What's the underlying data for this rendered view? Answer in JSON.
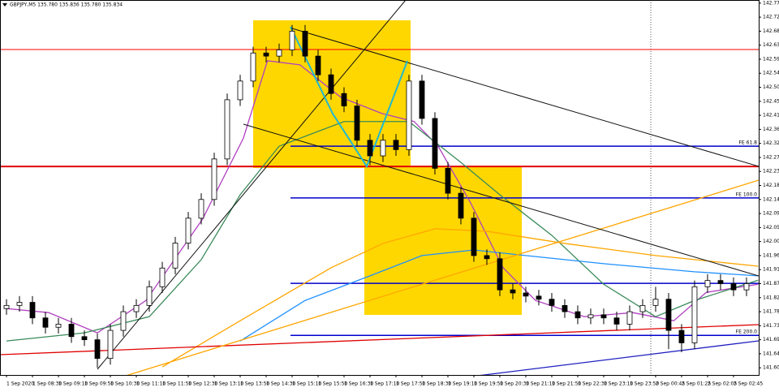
{
  "chart_data": {
    "type": "candlestick",
    "title": "GBPJPY,M5 135.780 135.836 135.780 135.834",
    "xlim": [
      -0.5,
      57.94
    ],
    "ylim": [
      141.577,
      142.78
    ],
    "yticks": [
      142.77,
      142.725,
      142.68,
      142.635,
      {
        "value": 142.59,
        "label": "142.590"
      },
      142.545,
      {
        "value": 142.5,
        "label": "142.500"
      },
      142.455,
      {
        "value": 142.41,
        "label": "142.410"
      },
      142.365,
      {
        "value": 142.32,
        "label": "142.320"
      },
      142.275,
      {
        "value": 142.23,
        "label": "142.230"
      },
      142.185,
      {
        "value": 142.14,
        "label": "142.140"
      },
      142.095,
      {
        "value": 142.05,
        "label": "142.050"
      },
      142.005,
      {
        "value": 141.96,
        "label": "141.960"
      },
      141.915,
      {
        "value": 141.87,
        "label": "141.870"
      },
      141.825,
      {
        "value": 141.78,
        "label": "141.780"
      },
      141.735,
      {
        "value": 141.69,
        "label": "141.690"
      },
      141.645,
      {
        "value": 141.6,
        "label": "141.600"
      }
    ],
    "xticks": [
      {
        "value": 0,
        "label": "1 Sep 2020"
      },
      {
        "value": 2,
        "label": "1 Sep 08:30"
      },
      {
        "value": 4,
        "label": "1 Sep 09:10"
      },
      {
        "value": 6,
        "label": "1 Sep 09:50"
      },
      {
        "value": 8,
        "label": "1 Sep 10:30"
      },
      {
        "value": 10,
        "label": "1 Sep 11:10"
      },
      {
        "value": 12,
        "label": "1 Sep 11:50"
      },
      {
        "value": 14,
        "label": "1 Sep 12:30"
      },
      {
        "value": 16,
        "label": "1 Sep 13:10"
      },
      {
        "value": 18,
        "label": "1 Sep 13:50"
      },
      {
        "value": 20,
        "label": "1 Sep 14:30"
      },
      {
        "value": 22,
        "label": "1 Sep 15:10"
      },
      {
        "value": 24,
        "label": "1 Sep 15:50"
      },
      {
        "value": 26,
        "label": "1 Sep 16:30"
      },
      {
        "value": 28,
        "label": "1 Sep 17:10"
      },
      {
        "value": 30,
        "label": "1 Sep 17:50"
      },
      {
        "value": 32,
        "label": "1 Sep 18:30"
      },
      {
        "value": 34,
        "label": "1 Sep 19:10"
      },
      {
        "value": 36,
        "label": "1 Sep 19:50"
      },
      {
        "value": 38,
        "label": "1 Sep 20:30"
      },
      {
        "value": 40,
        "label": "1 Sep 21:10"
      },
      {
        "value": 42,
        "label": "1 Sep 21:50"
      },
      {
        "value": 44,
        "label": "1 Sep 22:30"
      },
      {
        "value": 46,
        "label": "1 Sep 23:10"
      },
      {
        "value": 48,
        "label": "1 Sep 23:50"
      },
      {
        "value": 50,
        "label": "2 Sep 00:45"
      },
      {
        "value": 52,
        "label": "2 Sep 01:25"
      },
      {
        "value": 54,
        "label": "2 Sep 02:05"
      },
      {
        "value": 56,
        "label": "2 Sep 02:45"
      }
    ],
    "open": [
      141.79,
      141.8,
      141.81,
      141.76,
      141.73,
      141.74,
      141.7,
      141.69,
      141.63,
      141.72,
      141.78,
      141.8,
      141.86,
      141.92,
      142.0,
      142.08,
      142.14,
      142.27,
      142.46,
      142.52,
      142.61,
      142.6,
      142.62,
      142.68,
      142.6,
      142.54,
      142.48,
      142.44,
      142.33,
      142.28,
      142.33,
      142.3,
      142.52,
      142.4,
      142.24,
      142.16,
      142.08,
      141.96,
      141.95,
      141.85,
      141.84,
      141.83,
      141.82,
      141.8,
      141.78,
      141.76,
      141.77,
      141.76,
      141.74,
      141.78,
      141.8,
      141.82,
      141.72,
      141.68,
      141.86,
      141.88,
      141.87,
      141.85
    ],
    "high": [
      141.82,
      141.83,
      141.83,
      141.78,
      141.76,
      141.76,
      141.72,
      141.71,
      141.74,
      141.8,
      141.82,
      141.88,
      141.94,
      142.02,
      142.1,
      142.16,
      142.29,
      142.48,
      142.54,
      142.63,
      142.63,
      142.64,
      142.7,
      142.7,
      142.62,
      142.56,
      142.5,
      142.46,
      142.35,
      142.35,
      142.35,
      142.54,
      142.54,
      142.42,
      142.26,
      142.18,
      142.1,
      141.98,
      141.97,
      141.87,
      141.86,
      141.85,
      141.84,
      141.82,
      141.8,
      141.79,
      141.79,
      141.78,
      141.8,
      141.82,
      141.86,
      141.84,
      141.74,
      141.88,
      141.9,
      141.9,
      141.89,
      141.89
    ],
    "low": [
      141.77,
      141.78,
      141.74,
      141.71,
      141.71,
      141.68,
      141.67,
      141.6,
      141.61,
      141.7,
      141.76,
      141.78,
      141.84,
      141.9,
      141.98,
      142.06,
      142.12,
      142.25,
      142.44,
      142.5,
      142.58,
      142.58,
      142.6,
      142.58,
      142.52,
      142.46,
      142.42,
      142.31,
      142.25,
      142.26,
      142.28,
      142.28,
      142.38,
      142.22,
      142.14,
      142.06,
      141.94,
      141.93,
      141.83,
      141.82,
      141.81,
      141.8,
      141.78,
      141.76,
      141.74,
      141.74,
      141.74,
      141.72,
      141.72,
      141.76,
      141.78,
      141.66,
      141.65,
      141.66,
      141.84,
      141.85,
      141.83,
      141.83
    ],
    "close": [
      141.8,
      141.81,
      141.76,
      141.73,
      141.74,
      141.7,
      141.69,
      141.63,
      141.72,
      141.78,
      141.8,
      141.86,
      141.92,
      142.0,
      142.08,
      142.14,
      142.27,
      142.46,
      142.52,
      142.61,
      142.6,
      142.62,
      142.68,
      142.6,
      142.54,
      142.48,
      142.44,
      142.33,
      142.28,
      142.33,
      142.3,
      142.52,
      142.4,
      142.24,
      142.16,
      142.08,
      141.96,
      141.95,
      141.85,
      141.84,
      141.83,
      141.82,
      141.8,
      141.78,
      141.76,
      141.77,
      141.76,
      141.74,
      141.78,
      141.8,
      141.82,
      141.72,
      141.68,
      141.86,
      141.88,
      141.87,
      141.85,
      141.87
    ],
    "series": [
      {
        "color": "#b040c0",
        "x": [
          0,
          3.25,
          7,
          10.75,
          15.1,
          18.25,
          20.1,
          22.6,
          25.75,
          28.9,
          31.4,
          33.25,
          35.75,
          38.25,
          40.75,
          44.5,
          48.25,
          51.4,
          53.9,
          57.9
        ],
        "values": [
          141.79,
          141.777,
          141.712,
          141.816,
          142.077,
          142.337,
          142.585,
          142.572,
          142.468,
          142.416,
          142.39,
          142.311,
          142.129,
          141.921,
          141.816,
          141.764,
          141.777,
          141.751,
          141.842,
          141.868
        ]
      },
      {
        "color": "#3a8a5a",
        "x": [
          0,
          6,
          11,
          15,
          18,
          21,
          26,
          31,
          35,
          38,
          42,
          46,
          50,
          53,
          57.9
        ],
        "values": [
          141.686,
          141.712,
          141.764,
          141.947,
          142.155,
          142.311,
          142.39,
          142.39,
          142.259,
          142.155,
          142.025,
          141.868,
          141.764,
          141.816,
          141.881
        ]
      },
      {
        "color": "#1e90ff",
        "x": [
          18,
          23,
          28,
          32,
          36,
          40,
          46,
          53,
          57.9
        ],
        "values": [
          141.686,
          141.816,
          141.895,
          141.96,
          141.978,
          141.96,
          141.934,
          141.908,
          141.895
        ]
      },
      {
        "color": "#ffa500",
        "x": [
          12,
          18,
          25,
          29,
          33,
          37,
          43,
          50,
          57.9
        ],
        "values": [
          141.603,
          141.751,
          141.921,
          141.999,
          142.046,
          142.038,
          141.999,
          141.96,
          141.926
        ]
      }
    ],
    "levels": [
      {
        "price": 142.621,
        "color": "#ff0000"
      },
      {
        "price": 142.246,
        "color": "#e00000"
      },
      {
        "price": 142.311,
        "color": "#0000cc",
        "label": "FE 61.8"
      },
      {
        "price": 142.145,
        "color": "#0000cc",
        "label": "FE 100.0"
      },
      {
        "price": 141.871,
        "color": "#0000cc"
      },
      {
        "price": 141.704,
        "color": "#0000cc",
        "label": "FE 200.0"
      }
    ]
  }
}
